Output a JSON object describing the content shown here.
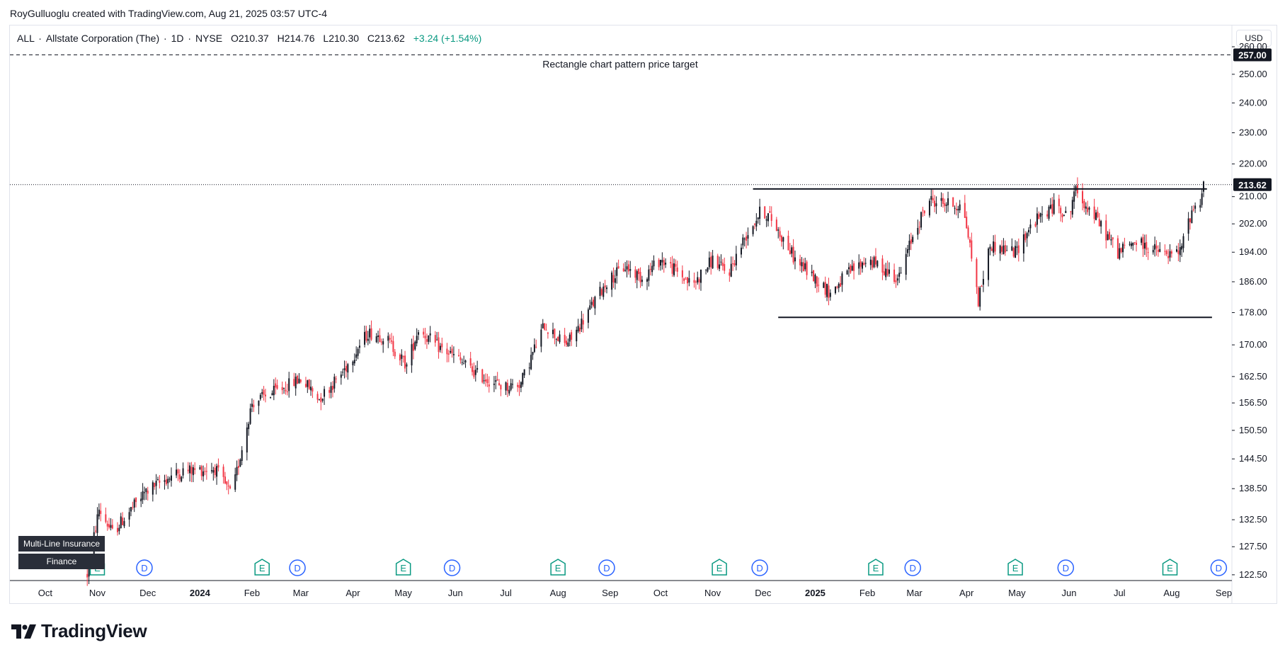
{
  "attribution": "RoyGulluoglu created with TradingView.com, Aug 21, 2025 03:57 UTC-4",
  "symbol": {
    "ticker": "ALL",
    "name": "Allstate Corporation (The)",
    "interval": "1D",
    "exchange": "NYSE",
    "open": "O210.37",
    "high": "H214.76",
    "low": "L210.30",
    "close": "C213.62",
    "change": "+3.24 (+1.54%)"
  },
  "currency": "USD",
  "sector_tags": [
    "Multi-Line Insurance",
    "Finance"
  ],
  "logo_text": "TradingView",
  "colors": {
    "up": "#131722",
    "down": "#f23645",
    "accent": "#2962ff",
    "earnings": "#089981",
    "line": "#131722"
  },
  "chart_data": {
    "type": "candlestick",
    "x_axis": {
      "ticks": [
        {
          "label": "Oct",
          "date": "2023-10-01"
        },
        {
          "label": "Nov",
          "date": "2023-11-01"
        },
        {
          "label": "Dec",
          "date": "2023-12-01"
        },
        {
          "label": "2024",
          "date": "2024-01-01",
          "bold": true
        },
        {
          "label": "Feb",
          "date": "2024-02-01"
        },
        {
          "label": "Mar",
          "date": "2024-03-01"
        },
        {
          "label": "Apr",
          "date": "2024-04-01"
        },
        {
          "label": "May",
          "date": "2024-05-01"
        },
        {
          "label": "Jun",
          "date": "2024-06-01"
        },
        {
          "label": "Jul",
          "date": "2024-07-01"
        },
        {
          "label": "Aug",
          "date": "2024-08-01"
        },
        {
          "label": "Sep",
          "date": "2024-09-01"
        },
        {
          "label": "Oct",
          "date": "2024-10-01"
        },
        {
          "label": "Nov",
          "date": "2024-11-01"
        },
        {
          "label": "Dec",
          "date": "2024-12-01"
        },
        {
          "label": "2025",
          "date": "2025-01-01",
          "bold": true
        },
        {
          "label": "Feb",
          "date": "2025-02-01"
        },
        {
          "label": "Mar",
          "date": "2025-03-01"
        },
        {
          "label": "Apr",
          "date": "2025-04-01"
        },
        {
          "label": "May",
          "date": "2025-05-01"
        },
        {
          "label": "Jun",
          "date": "2025-06-01"
        },
        {
          "label": "Jul",
          "date": "2025-07-01"
        },
        {
          "label": "Aug",
          "date": "2025-08-01"
        },
        {
          "label": "Sep",
          "date": "2025-09-01"
        }
      ]
    },
    "y_axis": {
      "scale": "log",
      "range": [
        121.5,
        268
      ],
      "ticks": [
        "260.00",
        "250.00",
        "240.00",
        "230.00",
        "220.00",
        "210.00",
        "202.00",
        "194.00",
        "186.00",
        "178.00",
        "170.00",
        "162.50",
        "156.50",
        "150.50",
        "144.50",
        "138.50",
        "132.50",
        "127.50",
        "122.50"
      ]
    },
    "price_path": [
      [
        "2023-10-26",
        122.5
      ],
      [
        "2023-11-02",
        134.5
      ],
      [
        "2023-11-10",
        130.0
      ],
      [
        "2023-11-30",
        138.0
      ],
      [
        "2023-12-15",
        141.0
      ],
      [
        "2023-12-22",
        142.0
      ],
      [
        "2024-01-10",
        142.5
      ],
      [
        "2024-01-20",
        137.0
      ],
      [
        "2024-02-01",
        156.5
      ],
      [
        "2024-02-20",
        160.0
      ],
      [
        "2024-03-01",
        162.0
      ],
      [
        "2024-03-12",
        157.5
      ],
      [
        "2024-03-25",
        163.0
      ],
      [
        "2024-04-10",
        173.0
      ],
      [
        "2024-04-20",
        172.0
      ],
      [
        "2024-05-03",
        165.0
      ],
      [
        "2024-05-10",
        174.0
      ],
      [
        "2024-05-20",
        170.0
      ],
      [
        "2024-06-01",
        167.0
      ],
      [
        "2024-06-14",
        163.0
      ],
      [
        "2024-06-30",
        160.0
      ],
      [
        "2024-07-10",
        161.0
      ],
      [
        "2024-07-24",
        175.0
      ],
      [
        "2024-08-05",
        170.0
      ],
      [
        "2024-08-10",
        172.0
      ],
      [
        "2024-08-30",
        186.0
      ],
      [
        "2024-09-10",
        190.0
      ],
      [
        "2024-09-20",
        187.0
      ],
      [
        "2024-10-01",
        192.0
      ],
      [
        "2024-10-10",
        189.0
      ],
      [
        "2024-10-20",
        185.0
      ],
      [
        "2024-11-01",
        192.0
      ],
      [
        "2024-11-10",
        188.0
      ],
      [
        "2024-11-20",
        198.0
      ],
      [
        "2024-11-30",
        206.0
      ],
      [
        "2024-12-05",
        204.0
      ],
      [
        "2024-12-20",
        192.0
      ],
      [
        "2025-01-10",
        183.0
      ],
      [
        "2025-01-20",
        188.0
      ],
      [
        "2025-02-01",
        192.0
      ],
      [
        "2025-02-20",
        187.0
      ],
      [
        "2025-03-01",
        200.0
      ],
      [
        "2025-03-10",
        209.0
      ],
      [
        "2025-03-30",
        207.0
      ],
      [
        "2025-04-05",
        190.0
      ],
      [
        "2025-04-08",
        181.0
      ],
      [
        "2025-04-15",
        196.0
      ],
      [
        "2025-04-30",
        194.0
      ],
      [
        "2025-05-10",
        202.0
      ],
      [
        "2025-05-25",
        208.0
      ],
      [
        "2025-06-01",
        203.0
      ],
      [
        "2025-06-04",
        212.0
      ],
      [
        "2025-06-15",
        205.0
      ],
      [
        "2025-06-30",
        194.0
      ],
      [
        "2025-07-10",
        197.0
      ],
      [
        "2025-07-30",
        193.0
      ],
      [
        "2025-08-06",
        194.0
      ],
      [
        "2025-08-13",
        206.0
      ],
      [
        "2025-08-18",
        209.0
      ],
      [
        "2025-08-20",
        213.62
      ]
    ],
    "pattern": {
      "name": "Rectangle",
      "resistance": 212.3,
      "resistance_from": "2024-11-25",
      "resistance_to": "2025-08-22",
      "support": 176.8,
      "support_from": "2024-12-10",
      "support_to": "2025-08-25"
    },
    "target": {
      "value": 257.0,
      "label": "Rectangle chart pattern price target",
      "price_label": "257.00"
    },
    "last_price": {
      "value": 213.62,
      "label": "213.62"
    },
    "events": [
      {
        "type": "E",
        "date": "2023-11-01"
      },
      {
        "type": "D",
        "date": "2023-11-29"
      },
      {
        "type": "E",
        "date": "2024-02-07"
      },
      {
        "type": "D",
        "date": "2024-02-28"
      },
      {
        "type": "E",
        "date": "2024-05-01"
      },
      {
        "type": "D",
        "date": "2024-05-30"
      },
      {
        "type": "E",
        "date": "2024-08-01"
      },
      {
        "type": "D",
        "date": "2024-08-30"
      },
      {
        "type": "E",
        "date": "2024-11-05"
      },
      {
        "type": "D",
        "date": "2024-11-29"
      },
      {
        "type": "E",
        "date": "2025-02-06"
      },
      {
        "type": "D",
        "date": "2025-02-28"
      },
      {
        "type": "E",
        "date": "2025-04-30"
      },
      {
        "type": "D",
        "date": "2025-05-30"
      },
      {
        "type": "E",
        "date": "2025-07-31"
      },
      {
        "type": "D",
        "date": "2025-08-29"
      }
    ]
  }
}
